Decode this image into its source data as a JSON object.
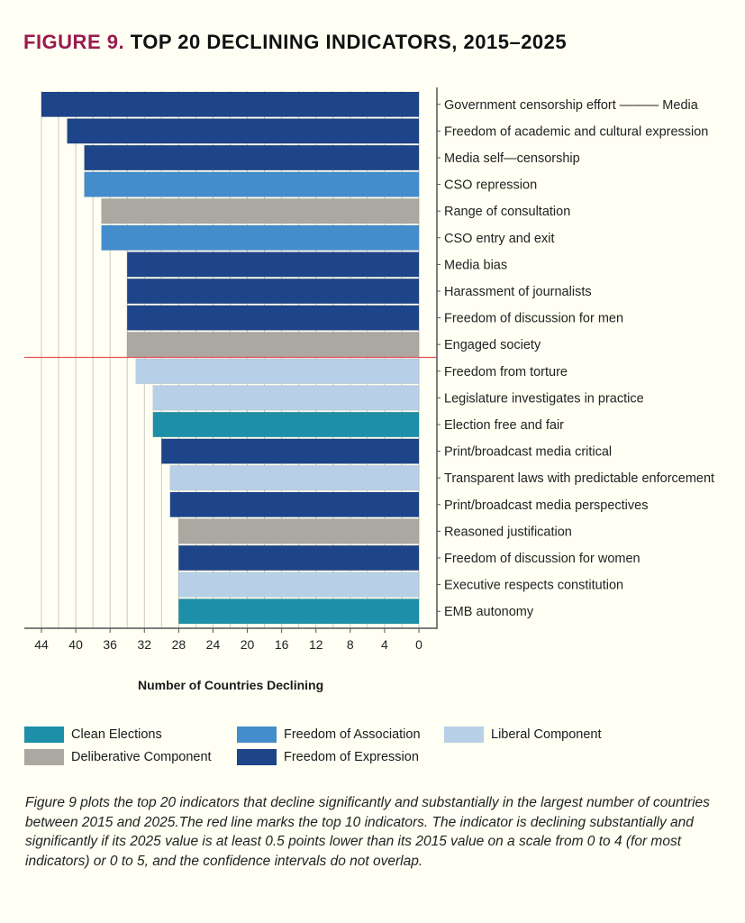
{
  "title": {
    "prefix": "FIGURE 9.",
    "text": "TOP 20 DECLINING INDICATORS, 2015–2025"
  },
  "chart_data": {
    "type": "bar",
    "orientation": "horizontal",
    "title": "TOP 20 DECLINING INDICATORS, 2015–2025",
    "xlabel": "Number of Countries Declining",
    "ylabel": "",
    "xlim": [
      0,
      44
    ],
    "x_reversed": true,
    "x_ticks": [
      44,
      40,
      36,
      32,
      28,
      24,
      20,
      16,
      12,
      8,
      4,
      0
    ],
    "gridlines_every": 2,
    "grid": true,
    "reference_line": {
      "after_index": 9,
      "color": "#e8505b",
      "meaning": "top 10 indicators"
    },
    "categories": [
      "Government censorship effort ——— Media",
      "Freedom of academic and cultural expression",
      "Media self—censorship",
      "CSO repression",
      "Range of consultation",
      "CSO entry and exit",
      "Media bias",
      "Harassment of journalists",
      "Freedom of discussion for men",
      "Engaged society",
      "Freedom from torture",
      "Legislature investigates in practice",
      "Election free and fair",
      "Print/broadcast media critical",
      "Transparent laws with predictable enforcement",
      "Print/broadcast media perspectives",
      "Reasoned justification",
      "Freedom of discussion for women",
      "Executive respects constitution",
      "EMB autonomy"
    ],
    "values": [
      44,
      41,
      39,
      39,
      37,
      37,
      34,
      34,
      34,
      34,
      33,
      31,
      31,
      30,
      29,
      29,
      28,
      28,
      28,
      28
    ],
    "groups": [
      "Freedom of Expression",
      "Freedom of Expression",
      "Freedom of Expression",
      "Freedom of Association",
      "Deliberative Component",
      "Freedom of Association",
      "Freedom of Expression",
      "Freedom of Expression",
      "Freedom of Expression",
      "Deliberative Component",
      "Liberal Component",
      "Liberal Component",
      "Clean Elections",
      "Freedom of Expression",
      "Liberal Component",
      "Freedom of Expression",
      "Deliberative Component",
      "Freedom of Expression",
      "Liberal Component",
      "Clean Elections"
    ],
    "legend": [
      {
        "name": "Clean Elections",
        "color": "#1e8fa8"
      },
      {
        "name": "Freedom of Association",
        "color": "#438dcc"
      },
      {
        "name": "Liberal Component",
        "color": "#b8d0e7"
      },
      {
        "name": "Deliberative Component",
        "color": "#aaa8a1"
      },
      {
        "name": "Freedom of Expression",
        "color": "#1e4489"
      }
    ],
    "legend_placement": "bottom"
  },
  "caption": "Figure 9 plots the top 20 indicators that decline significantly and substantially in the largest number of countries between 2015 and 2025.The red line marks the top 10 indicators. The indicator is declining substantially and significantly if its 2025 value is at least 0.5 points lower than its 2015 value on a scale from 0 to 4 (for most indicators) or 0 to 5, and the confidence intervals do not overlap."
}
